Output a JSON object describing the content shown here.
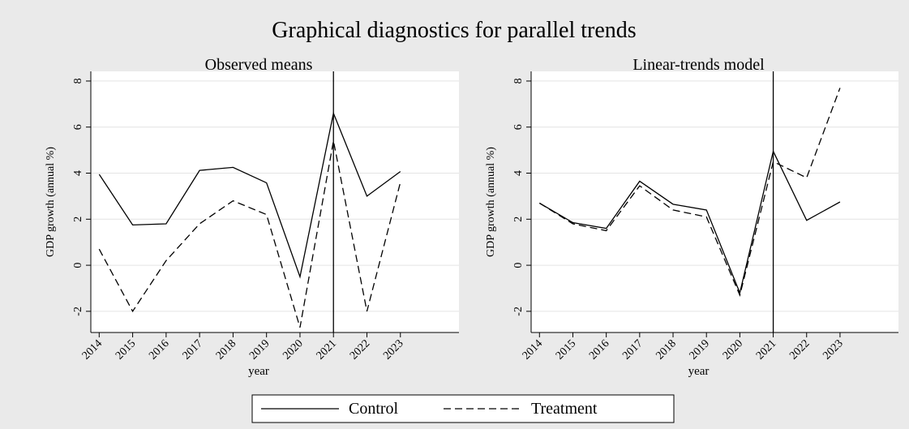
{
  "title": "Graphical diagnostics for parallel trends",
  "chart_data": [
    {
      "type": "line",
      "title": "Observed means",
      "xlabel": "year",
      "ylabel": "GDP growth (annual %)",
      "x": [
        2014,
        2015,
        2016,
        2017,
        2018,
        2019,
        2020,
        2021,
        2022,
        2023
      ],
      "xlim": [
        2013.75,
        2024.75
      ],
      "xticks": [
        2014,
        2015,
        2016,
        2017,
        2018,
        2019,
        2020,
        2021,
        2022,
        2023
      ],
      "ylim": [
        -2.92,
        8.42
      ],
      "yticks": [
        -2,
        0,
        2,
        4,
        6,
        8
      ],
      "grid": true,
      "xline": 2021,
      "series": [
        {
          "name": "Control",
          "color": "#000000",
          "style": "solid",
          "values": [
            3.95,
            1.75,
            1.8,
            4.12,
            4.25,
            3.58,
            -0.5,
            6.6,
            3.0,
            4.07
          ]
        },
        {
          "name": "Treatment",
          "color": "#000000",
          "style": "dashed",
          "values": [
            0.7,
            -2.0,
            0.2,
            1.8,
            2.8,
            2.2,
            -2.7,
            5.4,
            -2.0,
            3.6
          ]
        }
      ]
    },
    {
      "type": "line",
      "title": "Linear-trends model",
      "xlabel": "year",
      "ylabel": "GDP growth (annual %)",
      "x": [
        2014,
        2015,
        2016,
        2017,
        2018,
        2019,
        2020,
        2021,
        2022,
        2023
      ],
      "xlim": [
        2013.75,
        2024.75
      ],
      "xticks": [
        2014,
        2015,
        2016,
        2017,
        2018,
        2019,
        2020,
        2021,
        2022,
        2023
      ],
      "ylim": [
        -2.92,
        8.42
      ],
      "yticks": [
        -2,
        0,
        2,
        4,
        6,
        8
      ],
      "grid": true,
      "xline": 2021,
      "series": [
        {
          "name": "Control",
          "color": "#000000",
          "style": "solid",
          "values": [
            2.7,
            1.85,
            1.6,
            3.65,
            2.65,
            2.4,
            -1.2,
            4.95,
            1.95,
            2.75
          ]
        },
        {
          "name": "Treatment",
          "color": "#000000",
          "style": "dashed",
          "values": [
            2.7,
            1.8,
            1.5,
            3.45,
            2.4,
            2.1,
            -1.3,
            4.5,
            3.8,
            7.7
          ]
        }
      ]
    }
  ]
}
